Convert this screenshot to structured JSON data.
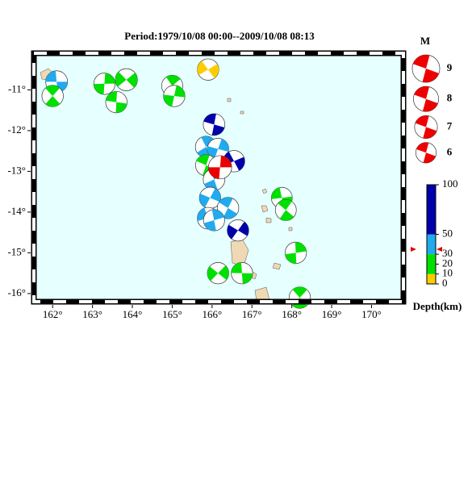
{
  "map": {
    "title": "Period:1979/10/08 00:00--2009/10/08 08:13",
    "xlim": [
      161.53,
      170.8
    ],
    "ylim": [
      -16.2,
      -10.1
    ],
    "xticks": [
      {
        "value": 162,
        "label": "162°"
      },
      {
        "value": 163,
        "label": "163°"
      },
      {
        "value": 164,
        "label": "164°"
      },
      {
        "value": 165,
        "label": "165°"
      },
      {
        "value": 166,
        "label": "166°"
      },
      {
        "value": 167,
        "label": "167°"
      },
      {
        "value": 168,
        "label": "168°"
      },
      {
        "value": 169,
        "label": "169°"
      },
      {
        "value": 170,
        "label": "170°"
      }
    ],
    "yticks": [
      {
        "value": -11,
        "label": "-11°"
      },
      {
        "value": -12,
        "label": "-12°"
      },
      {
        "value": -13,
        "label": "-13°"
      },
      {
        "value": -14,
        "label": "-14°"
      },
      {
        "value": -15,
        "label": "-15°"
      },
      {
        "value": -16,
        "label": "-16°"
      }
    ],
    "events": [
      {
        "lon": 162.1,
        "lat": -10.8,
        "depth": 40,
        "mag": 6.6
      },
      {
        "lon": 162.0,
        "lat": -11.15,
        "depth": 20,
        "mag": 6.4
      },
      {
        "lon": 163.3,
        "lat": -10.85,
        "depth": 20,
        "mag": 6.4
      },
      {
        "lon": 163.85,
        "lat": -10.75,
        "depth": 20,
        "mag": 6.7
      },
      {
        "lon": 163.6,
        "lat": -11.3,
        "depth": 20,
        "mag": 6.4
      },
      {
        "lon": 165.0,
        "lat": -10.9,
        "depth": 20,
        "mag": 6.3
      },
      {
        "lon": 165.05,
        "lat": -11.15,
        "depth": 20,
        "mag": 6.4
      },
      {
        "lon": 165.9,
        "lat": -10.5,
        "depth": 5,
        "mag": 6.4
      },
      {
        "lon": 166.05,
        "lat": -11.85,
        "depth": 80,
        "mag": 6.5
      },
      {
        "lon": 165.85,
        "lat": -12.4,
        "depth": 40,
        "mag": 6.4
      },
      {
        "lon": 166.15,
        "lat": -12.45,
        "depth": 40,
        "mag": 6.4
      },
      {
        "lon": 166.55,
        "lat": -12.75,
        "depth": 90,
        "mag": 6.4
      },
      {
        "lon": 165.85,
        "lat": -12.85,
        "depth": 20,
        "mag": 6.3
      },
      {
        "lon": 166.05,
        "lat": -13.2,
        "depth": 40,
        "mag": 6.5
      },
      {
        "lon": 165.95,
        "lat": -13.65,
        "depth": 40,
        "mag": 6.4
      },
      {
        "lon": 165.9,
        "lat": -14.15,
        "depth": 40,
        "mag": 6.5
      },
      {
        "lon": 166.4,
        "lat": -13.9,
        "depth": 40,
        "mag": 6.4
      },
      {
        "lon": 166.05,
        "lat": -14.2,
        "depth": 40,
        "mag": 6.3
      },
      {
        "lon": 166.65,
        "lat": -14.45,
        "depth": 90,
        "mag": 6.4
      },
      {
        "lon": 167.75,
        "lat": -13.65,
        "depth": 20,
        "mag": 6.2
      },
      {
        "lon": 167.85,
        "lat": -13.95,
        "depth": 20,
        "mag": 6.2
      },
      {
        "lon": 168.1,
        "lat": -15.0,
        "depth": 20,
        "mag": 6.4
      },
      {
        "lon": 166.15,
        "lat": -15.5,
        "depth": 20,
        "mag": 6.4
      },
      {
        "lon": 166.75,
        "lat": -15.5,
        "depth": 20,
        "mag": 6.4
      },
      {
        "lon": 168.2,
        "lat": -16.1,
        "depth": 20,
        "mag": 6.4
      },
      {
        "lon": 166.2,
        "lat": -12.9,
        "depth": 33,
        "mag": 7.2,
        "color": "#ee0000"
      }
    ],
    "magnitude_legend": {
      "title": "M",
      "items": [
        9,
        8,
        7,
        6
      ],
      "color": "#ee0000"
    },
    "depth_scale": {
      "label": "Depth(km)",
      "lim": [
        0,
        100
      ],
      "ticks": [
        0,
        10,
        20,
        30,
        50,
        100
      ],
      "bands": [
        {
          "from": 0,
          "to": 10,
          "color": "#ffcc00"
        },
        {
          "from": 10,
          "to": 30,
          "color": "#00e000"
        },
        {
          "from": 30,
          "to": 50,
          "color": "#22aaee"
        },
        {
          "from": 50,
          "to": 100,
          "color": "#0000aa"
        }
      ]
    }
  }
}
